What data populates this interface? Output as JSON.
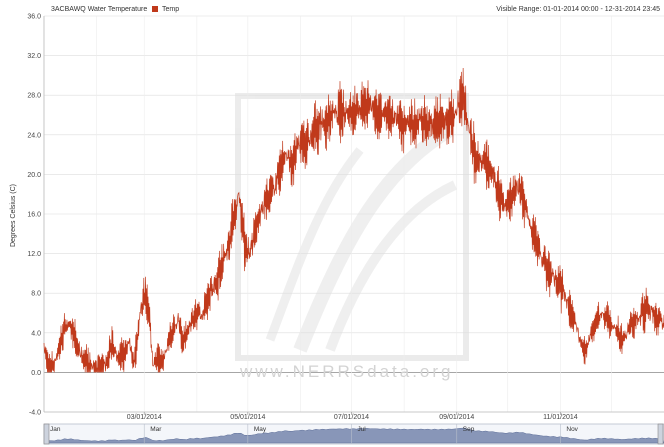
{
  "chart_data": {
    "type": "line",
    "title": "3ACBAWQ Water Temperature",
    "legend": [
      {
        "name": "Temp",
        "color": "#c0391b"
      }
    ],
    "visible_range_label": "Visible Range:",
    "visible_range": "01-01-2014 00:00 - 12-31-2014 23:45",
    "ylabel": "Degrees Celsius (C)",
    "ylim": [
      -4.0,
      36.0
    ],
    "y_ticks": [
      "-4.0",
      "0.0",
      "4.0",
      "8.0",
      "12.0",
      "16.0",
      "20.0",
      "24.0",
      "28.0",
      "32.0",
      "36.0"
    ],
    "x_ticks": [
      "03/01/2014",
      "05/01/2014",
      "07/01/2014",
      "09/01/2014",
      "11/01/2014"
    ],
    "navigator_months": [
      "Jan",
      "Mar",
      "May",
      "Jul",
      "Sep",
      "Nov"
    ],
    "watermark": "www.NERRSdata.org",
    "grid": true,
    "series": [
      {
        "name": "Temp",
        "color": "#c0391b",
        "x_unit": "day of year 2014",
        "points": [
          [
            0,
            2.5
          ],
          [
            3,
            0.5
          ],
          [
            6,
            1.0
          ],
          [
            10,
            3.0
          ],
          [
            13,
            5.0
          ],
          [
            17,
            4.0
          ],
          [
            21,
            2.0
          ],
          [
            25,
            1.0
          ],
          [
            29,
            0.5
          ],
          [
            33,
            0.3
          ],
          [
            37,
            1.0
          ],
          [
            40,
            3.0
          ],
          [
            43,
            1.5
          ],
          [
            47,
            2.0
          ],
          [
            50,
            3.0
          ],
          [
            53,
            1.0
          ],
          [
            56,
            5.0
          ],
          [
            59,
            8.0
          ],
          [
            62,
            6.0
          ],
          [
            64,
            1.0
          ],
          [
            67,
            1.5
          ],
          [
            70,
            1.0
          ],
          [
            73,
            3.0
          ],
          [
            76,
            4.0
          ],
          [
            79,
            5.5
          ],
          [
            82,
            3.0
          ],
          [
            86,
            5.0
          ],
          [
            90,
            6.0
          ],
          [
            93,
            5.5
          ],
          [
            97,
            8.0
          ],
          [
            101,
            9.0
          ],
          [
            105,
            11.0
          ],
          [
            109,
            13.0
          ],
          [
            112,
            16.0
          ],
          [
            115,
            18.0
          ],
          [
            118,
            13.0
          ],
          [
            121,
            12.0
          ],
          [
            124,
            14.0
          ],
          [
            127,
            16.0
          ],
          [
            130,
            17.0
          ],
          [
            134,
            18.0
          ],
          [
            138,
            20.0
          ],
          [
            142,
            22.0
          ],
          [
            146,
            21.0
          ],
          [
            150,
            23.0
          ],
          [
            154,
            23.0
          ],
          [
            158,
            24.0
          ],
          [
            162,
            25.0
          ],
          [
            166,
            25.0
          ],
          [
            170,
            26.0
          ],
          [
            174,
            26.0
          ],
          [
            178,
            26.5
          ],
          [
            182,
            26.0
          ],
          [
            186,
            27.0
          ],
          [
            190,
            27.0
          ],
          [
            194,
            26.5
          ],
          [
            198,
            26.0
          ],
          [
            202,
            26.0
          ],
          [
            206,
            25.5
          ],
          [
            210,
            25.5
          ],
          [
            214,
            25.0
          ],
          [
            218,
            25.0
          ],
          [
            222,
            25.5
          ],
          [
            226,
            25.0
          ],
          [
            230,
            25.0
          ],
          [
            234,
            25.0
          ],
          [
            238,
            25.5
          ],
          [
            242,
            26.0
          ],
          [
            245,
            27.5
          ],
          [
            247,
            28.5
          ],
          [
            249,
            26.0
          ],
          [
            252,
            23.0
          ],
          [
            256,
            21.5
          ],
          [
            260,
            21.0
          ],
          [
            264,
            20.0
          ],
          [
            268,
            18.0
          ],
          [
            272,
            17.0
          ],
          [
            276,
            18.0
          ],
          [
            280,
            19.0
          ],
          [
            283,
            17.0
          ],
          [
            286,
            15.0
          ],
          [
            290,
            13.0
          ],
          [
            294,
            11.0
          ],
          [
            298,
            10.0
          ],
          [
            302,
            9.0
          ],
          [
            306,
            8.5
          ],
          [
            310,
            6.0
          ],
          [
            313,
            5.0
          ],
          [
            316,
            3.0
          ],
          [
            319,
            2.0
          ],
          [
            322,
            4.0
          ],
          [
            325,
            5.0
          ],
          [
            328,
            6.0
          ],
          [
            331,
            5.5
          ],
          [
            334,
            5.0
          ],
          [
            337,
            4.5
          ],
          [
            340,
            3.5
          ],
          [
            343,
            4.0
          ],
          [
            346,
            5.0
          ],
          [
            349,
            5.5
          ],
          [
            352,
            6.0
          ],
          [
            355,
            6.5
          ],
          [
            358,
            6.0
          ],
          [
            361,
            5.5
          ],
          [
            364,
            5.0
          ]
        ]
      }
    ]
  }
}
